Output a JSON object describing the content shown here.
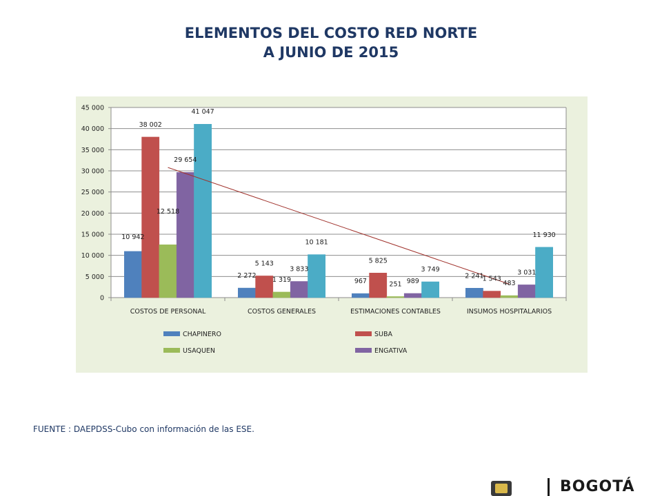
{
  "title_line1": "ELEMENTOS DEL COSTO RED NORTE",
  "title_line2": "A JUNIO DE 2015",
  "source_text": "FUENTE : DAEPDSS-Cubo con información de las ESE.",
  "footer": {
    "logo_text": "BOGOTÁ"
  },
  "chart_data": {
    "type": "bar",
    "title": "",
    "xlabel": "",
    "ylabel": "",
    "ylim": [
      0,
      45000
    ],
    "yticks": [
      0,
      5000,
      10000,
      15000,
      20000,
      25000,
      30000,
      35000,
      40000,
      45000
    ],
    "ytick_labels": [
      "0",
      "5 000",
      "10 000",
      "15 000",
      "20 000",
      "25 000",
      "30 000",
      "35 000",
      "40 000",
      "45 000"
    ],
    "grid": true,
    "legend_position": "bottom",
    "categories": [
      "COSTOS DE PERSONAL",
      "COSTOS GENERALES",
      "ESTIMACIONES CONTABLES",
      "INSUMOS HOSPITALARIOS"
    ],
    "series": [
      {
        "name": "CHAPINERO",
        "color": "#4f81bd",
        "values": [
          10942,
          2272,
          967,
          2241
        ],
        "labels": [
          "10 942",
          "2 272",
          "967",
          "2 241"
        ]
      },
      {
        "name": "SUBA",
        "color": "#c0504d",
        "values": [
          38002,
          5143,
          5825,
          1543
        ],
        "labels": [
          "38 002",
          "5 143",
          "5 825",
          "1 543"
        ]
      },
      {
        "name": "USAQUEN",
        "color": "#9bbb59",
        "values": [
          12518,
          1319,
          251,
          483
        ],
        "labels": [
          "12 518",
          "1 319",
          "251",
          "483"
        ]
      },
      {
        "name": "ENGATIVA",
        "color": "#8064a2",
        "values": [
          29654,
          3833,
          989,
          3031
        ],
        "labels": [
          "29 654",
          "3 833",
          "989",
          "3 031"
        ]
      },
      {
        "name": "",
        "color": "#4bacc6",
        "values": [
          41047,
          10181,
          3749,
          11930
        ],
        "labels": [
          "41 047",
          "10 181",
          "3 749",
          "11 930"
        ]
      }
    ],
    "trendline": {
      "color": "#a0322c",
      "from": {
        "category": "COSTOS DE PERSONAL",
        "y": 30800
      },
      "to": {
        "category": "INSUMOS HOSPITALARIOS",
        "y": 3200
      }
    }
  }
}
